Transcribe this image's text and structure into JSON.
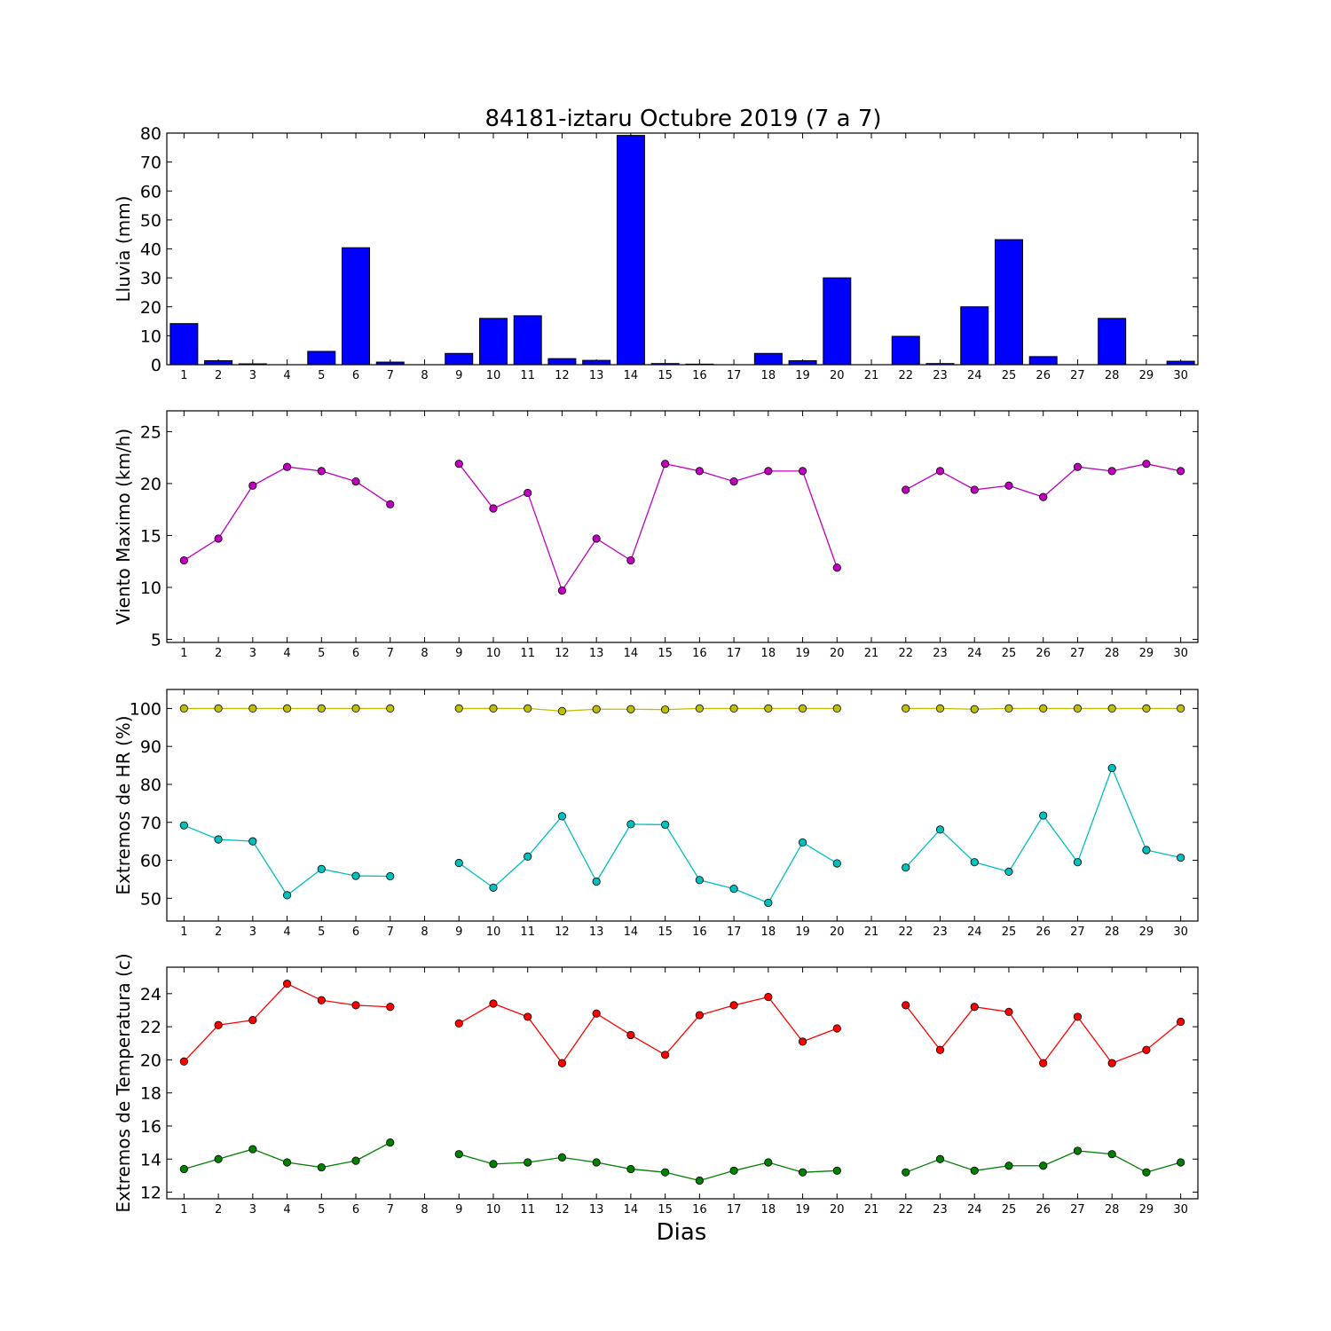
{
  "figure": {
    "title": "84181-iztaru Octubre 2019  (7 a 7)",
    "xlabel": "Dias"
  },
  "chart_data": [
    {
      "type": "bar",
      "ylabel": "Lluvia (mm)",
      "ylim": [
        0,
        80
      ],
      "yticks": [
        0,
        10,
        20,
        30,
        40,
        50,
        60,
        70,
        80
      ],
      "xlim": [
        0.5,
        30.5
      ],
      "categories": [
        "1",
        "2",
        "3",
        "4",
        "5",
        "6",
        "7",
        "8",
        "9",
        "10",
        "11",
        "12",
        "13",
        "14",
        "15",
        "16",
        "17",
        "18",
        "19",
        "20",
        "21",
        "22",
        "23",
        "24",
        "25",
        "26",
        "27",
        "28",
        "29",
        "30"
      ],
      "series": [
        {
          "color": "#0000ff",
          "values": [
            14.2,
            1.4,
            0.3,
            0,
            4.6,
            40.4,
            0.9,
            0,
            3.9,
            16.0,
            16.9,
            2.1,
            1.5,
            79.2,
            0.4,
            0.2,
            0,
            3.9,
            1.4,
            30.0,
            0,
            9.8,
            0.4,
            20.0,
            43.2,
            2.8,
            0,
            16.0,
            0,
            1.2
          ]
        }
      ]
    },
    {
      "type": "line",
      "ylabel": "Viento Maximo (km/h)",
      "ylim": [
        4.7,
        27
      ],
      "yticks": [
        5,
        10,
        15,
        20,
        25
      ],
      "xlim": [
        0.5,
        30.5
      ],
      "x": [
        1,
        2,
        3,
        4,
        5,
        6,
        7,
        8,
        9,
        10,
        11,
        12,
        13,
        14,
        15,
        16,
        17,
        18,
        19,
        20,
        21,
        22,
        23,
        24,
        25,
        26,
        27,
        28,
        29,
        30
      ],
      "series": [
        {
          "color": "#bf00bf",
          "values": [
            12.6,
            14.7,
            19.8,
            21.6,
            21.2,
            20.2,
            18.0,
            null,
            21.9,
            17.6,
            19.1,
            9.7,
            14.7,
            12.6,
            21.9,
            21.2,
            20.2,
            21.2,
            21.2,
            11.9,
            null,
            19.4,
            21.2,
            19.4,
            19.8,
            18.7,
            21.6,
            21.2,
            21.9,
            21.2
          ]
        }
      ]
    },
    {
      "type": "line",
      "ylabel": "Extremos de HR (%)",
      "ylim": [
        44,
        105
      ],
      "yticks": [
        50,
        60,
        70,
        80,
        90,
        100
      ],
      "xlim": [
        0.5,
        30.5
      ],
      "x": [
        1,
        2,
        3,
        4,
        5,
        6,
        7,
        8,
        9,
        10,
        11,
        12,
        13,
        14,
        15,
        16,
        17,
        18,
        19,
        20,
        21,
        22,
        23,
        24,
        25,
        26,
        27,
        28,
        29,
        30
      ],
      "series": [
        {
          "color": "#bfbf00",
          "values": [
            100,
            100,
            100,
            100,
            100,
            100,
            100,
            null,
            100,
            100,
            100,
            99.3,
            99.8,
            99.8,
            99.7,
            100,
            100,
            100,
            100,
            100,
            null,
            100,
            100,
            99.8,
            100,
            100,
            100,
            100,
            100,
            100
          ]
        },
        {
          "color": "#00bfbf",
          "values": [
            69.2,
            65.5,
            65.0,
            50.8,
            57.7,
            55.9,
            55.8,
            null,
            59.3,
            52.8,
            61.0,
            71.6,
            54.4,
            69.5,
            69.4,
            54.8,
            52.5,
            48.8,
            64.7,
            59.2,
            null,
            58.1,
            68.1,
            59.5,
            57.0,
            71.8,
            59.5,
            84.3,
            62.7,
            60.7
          ]
        }
      ]
    },
    {
      "type": "line",
      "ylabel": "Extremos de Temperatura (c)",
      "ylim": [
        11.6,
        25.6
      ],
      "yticks": [
        12,
        14,
        16,
        18,
        20,
        22,
        24
      ],
      "xlim": [
        0.5,
        30.5
      ],
      "x": [
        1,
        2,
        3,
        4,
        5,
        6,
        7,
        8,
        9,
        10,
        11,
        12,
        13,
        14,
        15,
        16,
        17,
        18,
        19,
        20,
        21,
        22,
        23,
        24,
        25,
        26,
        27,
        28,
        29,
        30
      ],
      "series": [
        {
          "color": "#ff0000",
          "values": [
            19.9,
            22.1,
            22.4,
            24.6,
            23.6,
            23.3,
            23.2,
            null,
            22.2,
            23.4,
            22.6,
            19.8,
            22.8,
            21.5,
            20.3,
            22.7,
            23.3,
            23.8,
            21.1,
            21.9,
            null,
            23.3,
            20.6,
            23.2,
            22.9,
            19.8,
            22.6,
            19.8,
            20.6,
            22.3
          ]
        },
        {
          "color": "#008000",
          "values": [
            13.4,
            14.0,
            14.6,
            13.8,
            13.5,
            13.9,
            15.0,
            null,
            14.3,
            13.7,
            13.8,
            14.1,
            13.8,
            13.4,
            13.2,
            12.7,
            13.3,
            13.8,
            13.2,
            13.3,
            null,
            13.2,
            14.0,
            13.3,
            13.6,
            13.6,
            14.5,
            14.3,
            13.2,
            13.8
          ]
        }
      ]
    }
  ]
}
